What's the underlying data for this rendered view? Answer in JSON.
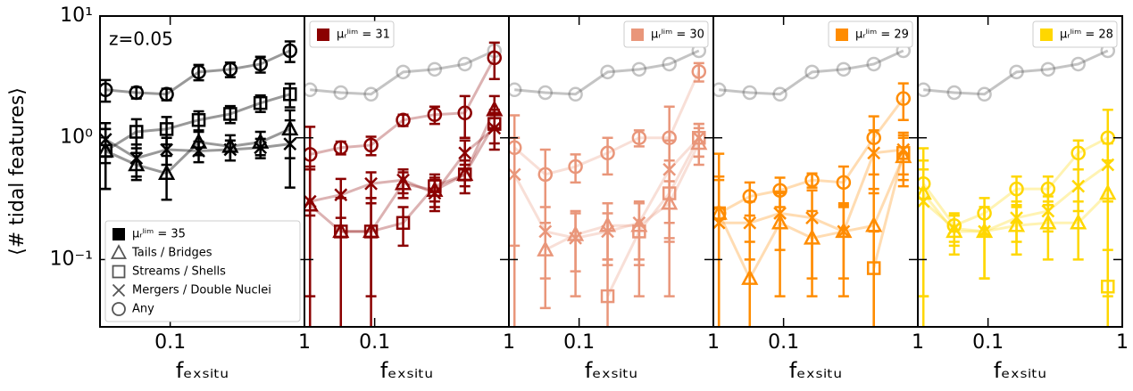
{
  "chart_data": [
    {
      "type": "line",
      "label": "μᵣˡⁱᵐ = 35",
      "color": "#000000",
      "legend": "lower left",
      "annotation": "z=0.05",
      "ylabel": "⟨# tidal features⟩",
      "xlabel": "fₑₓₛᵢₜᵤ",
      "log_x": true,
      "log_y": true,
      "xlim": [
        0.03,
        1
      ],
      "ylim": [
        0.028,
        10
      ],
      "xticks": [
        {
          "value": 0.1,
          "label": "0.1"
        },
        1
      ],
      "yticks": [
        {
          "value": 10,
          "label": "10¹"
        },
        {
          "value": 1,
          "label": "10⁰"
        },
        {
          "value": 0.1,
          "label": "10⁻¹"
        }
      ],
      "x": [
        0.033,
        0.056,
        0.094,
        0.163,
        0.28,
        0.47,
        0.78
      ],
      "series": [
        {
          "name": "Tails / Bridges",
          "marker": "triangle",
          "values": [
            0.78,
            0.6,
            0.51,
            0.92,
            0.85,
            0.92,
            1.18
          ],
          "errors": [
            0.4,
            0.15,
            0.2,
            0.2,
            0.2,
            0.2,
            0.5
          ]
        },
        {
          "name": "Streams / Shells",
          "marker": "square",
          "values": [
            0.78,
            1.12,
            1.18,
            1.4,
            1.57,
            1.93,
            2.28
          ],
          "errors": [
            0.4,
            0.3,
            0.3,
            0.25,
            0.25,
            0.3,
            0.5
          ]
        },
        {
          "name": "Mergers / Double Nuclei",
          "marker": "x",
          "values": [
            0.97,
            0.68,
            0.8,
            0.78,
            0.8,
            0.83,
            0.89
          ],
          "errors": [
            0.35,
            0.2,
            0.2,
            0.15,
            0.15,
            0.15,
            0.5
          ]
        },
        {
          "name": "Any",
          "marker": "circle",
          "values": [
            2.48,
            2.35,
            2.28,
            3.47,
            3.65,
            4.03,
            5.19
          ],
          "errors": [
            0.5,
            0.25,
            0.25,
            0.5,
            0.5,
            0.6,
            1.0
          ]
        }
      ]
    },
    {
      "type": "line",
      "label": "μᵣˡⁱᵐ = 31",
      "color": "#8b0000",
      "legend": "upper left",
      "xlabel": "fₑₓₛᵢₜᵤ",
      "log_x": true,
      "log_y": true,
      "xlim": [
        0.03,
        1
      ],
      "ylim": [
        0.028,
        10
      ],
      "xticks": [
        {
          "value": 0.1,
          "label": "0.1"
        },
        1
      ],
      "x": [
        0.033,
        0.056,
        0.094,
        0.163,
        0.28,
        0.47,
        0.78
      ],
      "series": [
        {
          "marker": "triangle",
          "values": [
            0.28,
            0.17,
            0.17,
            0.42,
            0.37,
            0.5,
            1.7
          ],
          "errors": [
            0.3,
            0.15,
            0.12,
            0.1,
            0.1,
            0.15,
            0.5
          ]
        },
        {
          "marker": "square",
          "values": [
            null,
            0.17,
            0.17,
            0.2,
            0.4,
            0.5,
            1.3
          ],
          "errors": [
            null,
            0.15,
            0.15,
            0.07,
            0.1,
            0.1,
            0.4
          ]
        },
        {
          "marker": "x",
          "values": [
            0.3,
            0.34,
            0.42,
            0.45,
            0.35,
            0.75,
            1.2
          ],
          "errors": [
            0.25,
            0.12,
            0.1,
            0.1,
            0.1,
            0.2,
            0.4
          ]
        },
        {
          "marker": "circle",
          "values": [
            0.73,
            0.83,
            0.87,
            1.4,
            1.55,
            1.6,
            4.54
          ],
          "errors": [
            0.5,
            0.1,
            0.15,
            0.15,
            0.25,
            0.6,
            1.5
          ]
        }
      ]
    },
    {
      "type": "line",
      "label": "μᵣˡⁱᵐ = 30",
      "color": "#e9967a",
      "legend": "upper right",
      "xlabel": "fₑₓₛᵢₜᵤ",
      "log_x": true,
      "log_y": true,
      "xlim": [
        0.03,
        1
      ],
      "ylim": [
        0.028,
        10
      ],
      "xticks": [
        {
          "value": 0.1,
          "label": "0.1"
        },
        1
      ],
      "x": [
        0.033,
        0.056,
        0.094,
        0.163,
        0.28,
        0.47,
        0.78
      ],
      "series": [
        {
          "marker": "triangle",
          "values": [
            null,
            0.12,
            0.16,
            0.19,
            0.19,
            0.29,
            0.9
          ],
          "errors": [
            null,
            0.08,
            0.08,
            0.1,
            0.1,
            0.15,
            0.3
          ]
        },
        {
          "marker": "square",
          "values": [
            null,
            null,
            null,
            0.05,
            0.17,
            0.35,
            1.0
          ],
          "errors": [
            null,
            null,
            null,
            0.05,
            0.12,
            0.3,
            0.3
          ]
        },
        {
          "marker": "x",
          "values": [
            0.5,
            0.17,
            0.15,
            0.17,
            0.2,
            0.55,
            1.0
          ],
          "errors": [
            0.5,
            0.1,
            0.1,
            0.07,
            0.1,
            0.4,
            0.3
          ]
        },
        {
          "marker": "circle",
          "values": [
            0.83,
            0.5,
            0.58,
            0.75,
            1.0,
            1.0,
            3.5
          ],
          "errors": [
            0.7,
            0.3,
            0.15,
            0.25,
            0.15,
            0.8,
            0.6
          ]
        }
      ]
    },
    {
      "type": "line",
      "label": "μᵣˡⁱᵐ = 29",
      "color": "#ff8c00",
      "legend": "upper right",
      "xlabel": "fₑₓₛᵢₜᵤ",
      "log_x": true,
      "log_y": true,
      "xlim": [
        0.03,
        1
      ],
      "ylim": [
        0.028,
        10
      ],
      "xticks": [
        {
          "value": 0.1,
          "label": "0.1"
        },
        1
      ],
      "x": [
        0.033,
        0.056,
        0.094,
        0.163,
        0.28,
        0.47,
        0.78
      ],
      "series": [
        {
          "marker": "triangle",
          "values": [
            0.24,
            0.07,
            0.2,
            0.15,
            0.17,
            0.19,
            0.7
          ],
          "errors": [
            0.24,
            0.07,
            0.15,
            0.1,
            0.12,
            0.19,
            0.3
          ]
        },
        {
          "marker": "square",
          "values": [
            0.24,
            null,
            null,
            null,
            null,
            0.085,
            0.75
          ],
          "errors": [
            0.24,
            null,
            null,
            null,
            null,
            0.085,
            0.3
          ]
        },
        {
          "marker": "x",
          "values": [
            0.2,
            0.2,
            0.24,
            0.22,
            0.17,
            0.75,
            0.8
          ],
          "errors": [
            0.25,
            0.1,
            0.12,
            0.15,
            0.1,
            0.4,
            0.3
          ]
        },
        {
          "marker": "circle",
          "values": [
            0.24,
            0.33,
            0.37,
            0.45,
            0.43,
            1.0,
            2.1
          ],
          "errors": [
            0.5,
            0.1,
            0.1,
            0.06,
            0.15,
            0.5,
            0.7
          ]
        }
      ]
    },
    {
      "type": "line",
      "label": "μᵣˡⁱᵐ = 28",
      "color": "#ffd700",
      "legend": "upper right",
      "xlabel": "fₑₓₛᵢₜᵤ",
      "log_x": true,
      "log_y": true,
      "xlim": [
        0.03,
        1
      ],
      "ylim": [
        0.028,
        10
      ],
      "xticks": [
        {
          "value": 0.1,
          "label": "0.1"
        },
        1
      ],
      "x": [
        0.033,
        0.056,
        0.094,
        0.163,
        0.28,
        0.47,
        0.78
      ],
      "series": [
        {
          "marker": "triangle",
          "values": [
            0.35,
            0.17,
            0.17,
            0.19,
            0.2,
            0.2,
            0.35
          ],
          "errors": [
            0.3,
            0.06,
            0.1,
            0.08,
            0.1,
            0.1,
            0.3
          ]
        },
        {
          "marker": "square",
          "values": [
            null,
            null,
            null,
            null,
            null,
            null,
            0.06
          ],
          "errors": [
            null,
            null,
            null,
            null,
            null,
            null,
            0.06
          ]
        },
        {
          "marker": "x",
          "values": [
            0.3,
            0.18,
            0.17,
            0.22,
            0.25,
            0.4,
            0.6
          ],
          "errors": [
            0.25,
            0.05,
            0.1,
            0.08,
            0.08,
            0.15,
            0.3
          ]
        },
        {
          "marker": "circle",
          "values": [
            0.42,
            0.19,
            0.24,
            0.38,
            0.38,
            0.75,
            1.0
          ],
          "errors": [
            0.4,
            0.05,
            0.08,
            0.1,
            0.1,
            0.2,
            0.7
          ]
        }
      ]
    }
  ]
}
